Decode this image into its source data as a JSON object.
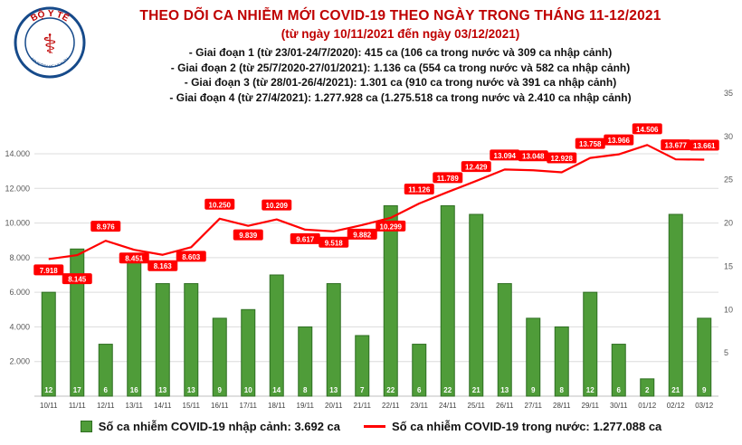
{
  "header": {
    "logo": {
      "label": "BỘ Y TẾ",
      "subtext": "MINISTRY OF HEALTH",
      "symbol": "⚕"
    },
    "title": "THEO DÕI CA NHIỄM MỚI COVID-19 THEO NGÀY TRONG THÁNG 11-12/2021",
    "subtitle": "(từ ngày 10/11/2021 đến ngày 03/12/2021)",
    "annotations": [
      "- Giai đoạn 1 (từ 23/01-24/7/2020): 415 ca (106 ca trong nước và 309 ca nhập cảnh)",
      "- Giai đoạn 2 (từ 25/7/2020-27/01/2021): 1.136 ca (554 ca trong nước và 582 ca nhập cảnh)",
      "- Giai đoạn 3 (từ 28/01-26/4/2021): 1.301 ca (910 ca trong nước và 391 ca nhập cảnh)",
      "- Giai đoạn 4 (từ 27/4/2021): 1.277.928 ca (1.275.518 ca trong nước và 2.410 ca nhập cảnh)"
    ]
  },
  "chart_data": {
    "type": "bar+line",
    "categories": [
      "10/11",
      "11/11",
      "12/11",
      "13/11",
      "14/11",
      "15/11",
      "16/11",
      "17/11",
      "18/11",
      "19/11",
      "20/11",
      "21/11",
      "22/11",
      "23/11",
      "24/11",
      "25/11",
      "26/11",
      "27/11",
      "28/11",
      "29/11",
      "30/11",
      "01/12",
      "02/12",
      "03/12"
    ],
    "series": [
      {
        "name": "Số ca nhiễm COVID-19 nhập cảnh",
        "type": "bar",
        "axis": "right",
        "color": "#4f9c39",
        "border_color": "#2f6e22",
        "values": [
          12,
          17,
          6,
          16,
          13,
          13,
          9,
          10,
          14,
          8,
          13,
          7,
          22,
          6,
          22,
          21,
          13,
          9,
          8,
          12,
          6,
          2,
          21,
          9
        ]
      },
      {
        "name": "Số ca nhiễm COVID-19 trong nước",
        "type": "line",
        "axis": "left",
        "color": "#ff0000",
        "values": [
          7918,
          8145,
          8976,
          8451,
          8163,
          8603,
          10250,
          9839,
          10209,
          9617,
          9518,
          9882,
          10299,
          11126,
          11789,
          12429,
          13094,
          13048,
          12928,
          13758,
          13966,
          14506,
          13677,
          13661
        ],
        "point_labels": [
          "7.918",
          "8.145",
          "8.976",
          "8.451",
          "8.163",
          "8.603",
          "10.250",
          "9.839",
          "10.209",
          "9.617",
          "9.518",
          "9.882",
          "10.299",
          "11.126",
          "11.789",
          "12.429",
          "13.094",
          "13.048",
          "12.928",
          "13.758",
          "13.966",
          "14.506",
          "13.677",
          "13.661"
        ]
      }
    ],
    "left_axis": {
      "ticks": [
        2000,
        4000,
        6000,
        8000,
        10000,
        12000,
        14000
      ],
      "tick_labels": [
        "2.000",
        "4.000",
        "6.000",
        "8.000",
        "10.000",
        "12.000",
        "14.000"
      ],
      "max": 17500
    },
    "right_axis": {
      "ticks": [
        5,
        10,
        15,
        20,
        25,
        30,
        35
      ],
      "max": 35
    },
    "grid": true,
    "legend_position": "bottom",
    "legend": [
      {
        "marker": "square",
        "color": "#4f9c39",
        "label": "Số ca nhiễm COVID-19 nhập cảnh: 3.692 ca"
      },
      {
        "marker": "line",
        "color": "#ff0000",
        "label": "Số ca nhiễm COVID-19 trong nước: 1.277.088 ca"
      }
    ],
    "layout_hints": {
      "label_dy": [
        12,
        26,
        -16,
        9,
        12,
        10,
        -16,
        10,
        -16,
        10,
        12,
        10,
        9,
        -16,
        -16,
        -16,
        -16,
        -16,
        -16,
        -16,
        -16,
        -18,
        -16,
        -16
      ]
    }
  },
  "colors": {
    "title": "#bf0000",
    "grid": "#dcdcdc",
    "axis_line": "#bfbfbf",
    "background": "#ffffff"
  }
}
